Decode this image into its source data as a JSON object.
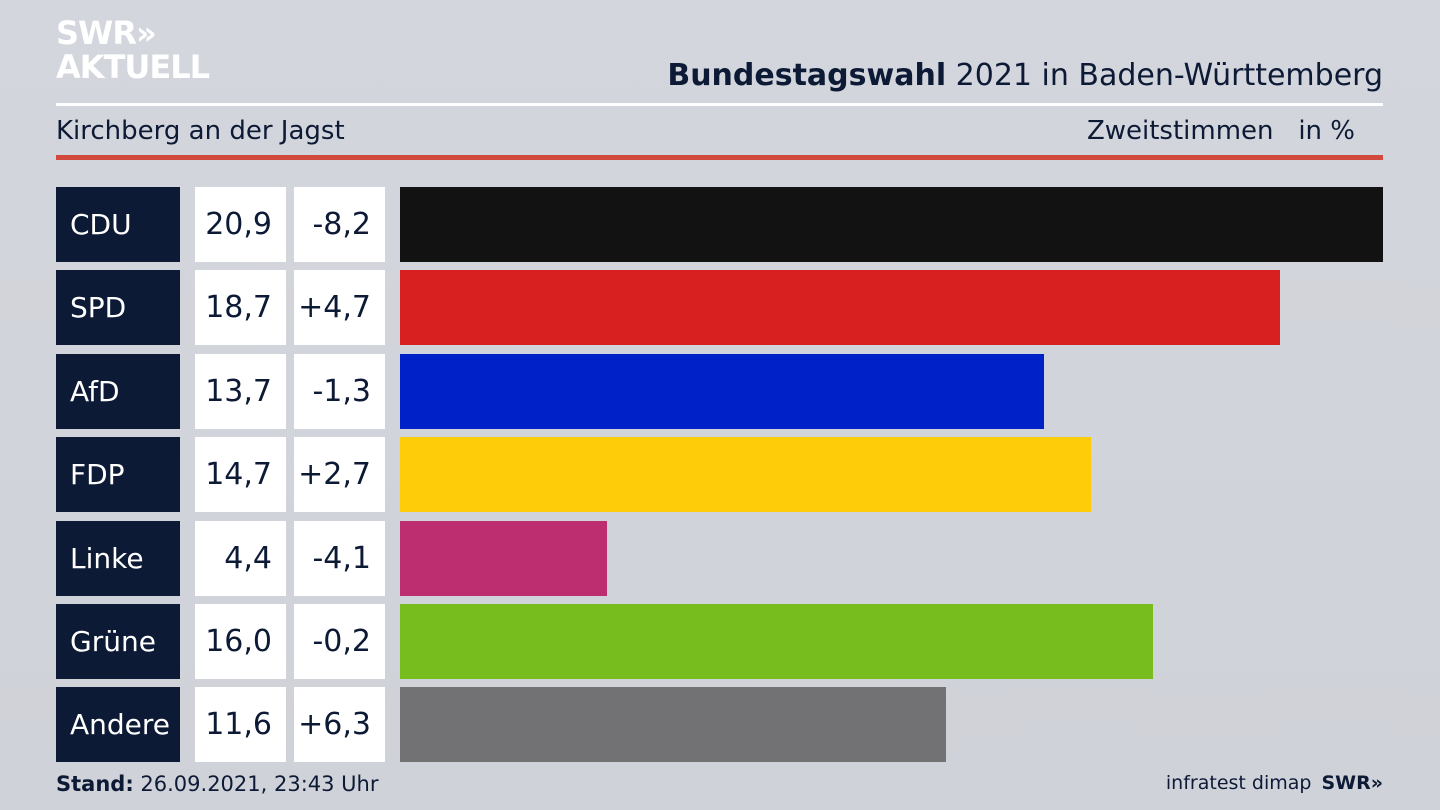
{
  "logo": {
    "line1": "SWR»",
    "line2": "AKTUELL"
  },
  "header": {
    "title_bold": "Bundestagswahl",
    "title_rest": " 2021 in Baden-Württemberg",
    "subtitle": "Kirchberg an der Jagst",
    "measure": "Zweitstimmen",
    "unit": "in %"
  },
  "footer": {
    "stand_label": "Stand:",
    "stand_value": " 26.09.2021, 23:43 Uhr",
    "source": "infratest dimap",
    "brand": "SWR»"
  },
  "chart_data": {
    "type": "bar",
    "orientation": "horizontal",
    "title": "Bundestagswahl 2021 in Baden-Württemberg",
    "subtitle": "Kirchberg an der Jagst",
    "ylabel": "Zweitstimmen in %",
    "xlim": [
      0,
      20.9
    ],
    "categories": [
      "CDU",
      "SPD",
      "AfD",
      "FDP",
      "Linke",
      "Grüne",
      "Andere"
    ],
    "values": [
      20.9,
      18.7,
      13.7,
      14.7,
      4.4,
      16.0,
      11.6
    ],
    "value_labels": [
      "20,9",
      "18,7",
      "13,7",
      "14,7",
      "4,4",
      "16,0",
      "11,6"
    ],
    "diff_labels": [
      "-8,2",
      "+4,7",
      "-1,3",
      "+2,7",
      "-4,1",
      "-0,2",
      "+6,3"
    ],
    "diffs": [
      -8.2,
      4.7,
      -1.3,
      2.7,
      -4.1,
      -0.2,
      6.3
    ],
    "colors": [
      "#121212",
      "#d82020",
      "#0020c8",
      "#ffcc09",
      "#bd2e70",
      "#78bd1e",
      "#727274"
    ]
  }
}
